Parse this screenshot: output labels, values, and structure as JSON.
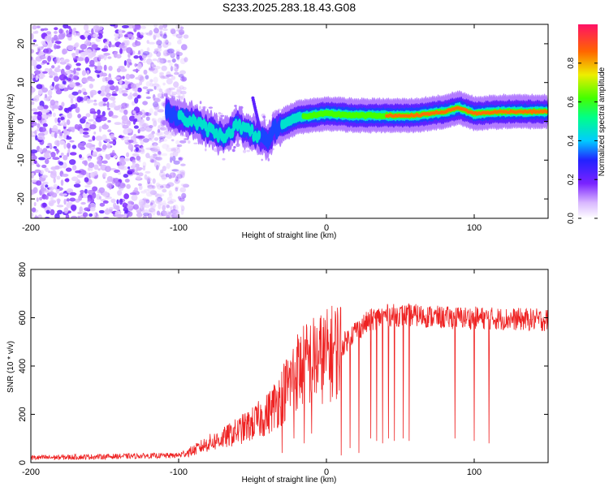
{
  "figure_title": "S233.2025.283.18.43.G08",
  "colors": {
    "line": "#ee2222",
    "axis": "#000000",
    "background": "#ffffff"
  },
  "chart_data": [
    {
      "type": "heatmap",
      "title": "",
      "xlabel": "Height of straight line (km)",
      "ylabel": "Frequency (Hz)",
      "xlim": [
        -200,
        150
      ],
      "ylim": [
        -25,
        25
      ],
      "xticks": [
        -200,
        -100,
        0,
        100
      ],
      "xtick_labels": [
        "-200",
        "-100",
        "0",
        "100"
      ],
      "yticks": [
        -20,
        -10,
        0,
        10,
        20
      ],
      "ytick_labels": [
        "-20",
        "-10",
        "0",
        "10",
        "20"
      ],
      "colorbar": {
        "label": "Normalized spectral amplitude",
        "range": [
          0,
          1
        ],
        "ticks": [
          0,
          0.2,
          0.4,
          0.6,
          0.8
        ],
        "tick_labels": [
          "0.0",
          "0.2",
          "0.4",
          "0.6",
          "0.8"
        ]
      },
      "ridge": {
        "description": "Dominant frequency track",
        "x": [
          -110,
          -100,
          -90,
          -80,
          -70,
          -60,
          -50,
          -40,
          -35,
          -30,
          -20,
          -10,
          0,
          20,
          40,
          60,
          80,
          90,
          100,
          120,
          150
        ],
        "freq": [
          3,
          1,
          0,
          -2,
          -4,
          -1,
          -3,
          -5,
          -2,
          -1,
          1,
          1.5,
          2,
          1.5,
          1.5,
          1.5,
          2.5,
          3.5,
          2,
          2.5,
          2.5
        ],
        "peak_amplitude": [
          0.3,
          0.4,
          0.45,
          0.4,
          0.42,
          0.45,
          0.42,
          0.38,
          0.35,
          0.4,
          0.55,
          0.6,
          0.7,
          0.75,
          0.8,
          0.85,
          0.9,
          0.9,
          0.9,
          0.9,
          0.85
        ]
      },
      "noise_region_x": [
        -200,
        -105
      ]
    },
    {
      "type": "line",
      "title": "",
      "xlabel": "Height of straight line (km)",
      "ylabel": "SNR (10 * v/v)",
      "xlim": [
        -200,
        150
      ],
      "ylim": [
        0,
        800
      ],
      "xticks": [
        -200,
        -100,
        0,
        100
      ],
      "xtick_labels": [
        "-200",
        "-100",
        "0",
        "100"
      ],
      "yticks": [
        0,
        200,
        400,
        600,
        800
      ],
      "ytick_labels": [
        "0",
        "200",
        "400",
        "600",
        "800"
      ],
      "series": [
        {
          "name": "SNR",
          "trend_x": [
            -200,
            -100,
            -90,
            -80,
            -70,
            -60,
            -50,
            -40,
            -30,
            -20,
            -10,
            0,
            10,
            20,
            30,
            40,
            60,
            80,
            100,
            120,
            150
          ],
          "trend_y": [
            20,
            30,
            50,
            80,
            100,
            130,
            160,
            200,
            280,
            380,
            420,
            440,
            480,
            550,
            590,
            610,
            610,
            600,
            600,
            595,
            590
          ],
          "dropout_x": [
            -30,
            -22,
            -15,
            -10,
            10,
            16,
            22,
            30,
            34,
            38,
            42,
            46,
            52,
            56,
            87,
            100,
            110
          ],
          "dropout_y": [
            40,
            100,
            80,
            120,
            30,
            60,
            40,
            100,
            90,
            80,
            100,
            90,
            100,
            90,
            100,
            90,
            80
          ]
        }
      ]
    }
  ]
}
